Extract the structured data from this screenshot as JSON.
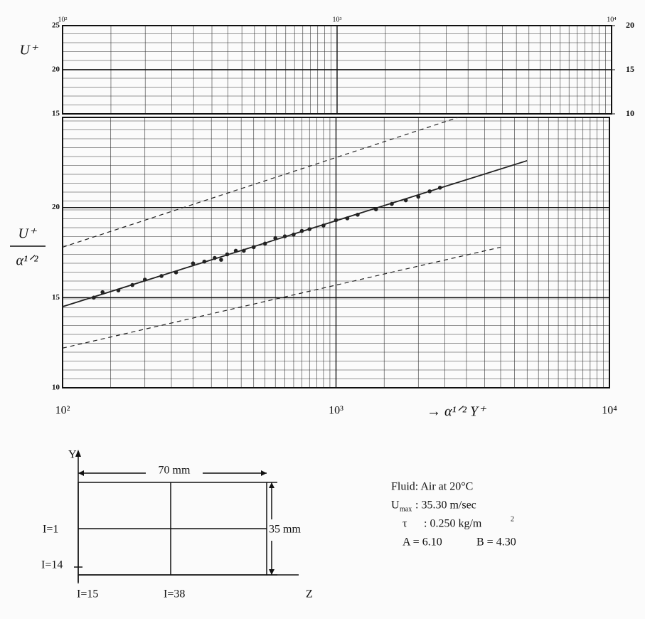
{
  "chart_data": [
    {
      "type": "scatter",
      "ylabel": [
        "U⁺",
        "α¹ᐟ²"
      ],
      "xlabel": "→ α¹ᐟ² Y⁺",
      "xlim": [
        100,
        10000
      ],
      "xticks": [
        {
          "value": 100,
          "label": "10²"
        },
        {
          "value": 1000,
          "label": "10³"
        },
        {
          "value": 10000,
          "label": "10⁴"
        }
      ],
      "ylim": [
        10,
        25
      ],
      "yticks": [
        10,
        15,
        20
      ],
      "log_x": true,
      "grid": true,
      "color": "#222222",
      "x": [
        130,
        140,
        160,
        180,
        200,
        230,
        260,
        300,
        330,
        360,
        380,
        400,
        430,
        460,
        500,
        550,
        600,
        650,
        700,
        750,
        800,
        900,
        1000,
        1100,
        1200,
        1400,
        1600,
        1800,
        2000,
        2200,
        2400
      ],
      "y": [
        15.0,
        15.3,
        15.4,
        15.7,
        16.0,
        16.2,
        16.4,
        16.9,
        17.0,
        17.2,
        17.1,
        17.4,
        17.6,
        17.6,
        17.8,
        18.0,
        18.3,
        18.4,
        18.5,
        18.7,
        18.8,
        19.0,
        19.3,
        19.4,
        19.6,
        19.9,
        20.2,
        20.4,
        20.6,
        20.9,
        21.1
      ],
      "lines": [
        {
          "x": [
            100,
            5000
          ],
          "y": [
            14.5,
            22.6
          ],
          "dash": false
        },
        {
          "x": [
            100,
            2800
          ],
          "y": [
            17.8,
            25
          ],
          "dash": true
        },
        {
          "x": [
            100,
            4000
          ],
          "y": [
            12.2,
            17.8
          ],
          "dash": true
        }
      ]
    },
    {
      "type": "grid",
      "ylabel": "U⁺",
      "xlim": [
        100,
        10000
      ],
      "xticks": [
        {
          "value": 100,
          "label": "10²"
        },
        {
          "value": 1000,
          "label": "10³"
        },
        {
          "value": 10000,
          "label": "10⁴"
        }
      ],
      "ylim": [
        15,
        25
      ],
      "yticks": [
        15,
        20,
        25
      ],
      "y2lim": [
        10,
        20
      ],
      "y2ticks": [
        10,
        15,
        20
      ],
      "log_x": true,
      "grid": true
    }
  ],
  "diagram": {
    "y_axis": "Y",
    "z_axis": "Z",
    "width": "70 mm",
    "height": "35 mm",
    "labels": [
      "I=1",
      "I=14",
      "I=15",
      "I=38"
    ]
  },
  "notes": {
    "fluid": "Fluid: Air at 20°C",
    "u": "U",
    "u_sub": "max",
    "u_value": ": 35.30 m/sec",
    "tau": "τ",
    "tau_value": ": 0.250 kg/m",
    "tau_sup": "2",
    "a": "A = 6.10",
    "b": "B = 4.30"
  }
}
